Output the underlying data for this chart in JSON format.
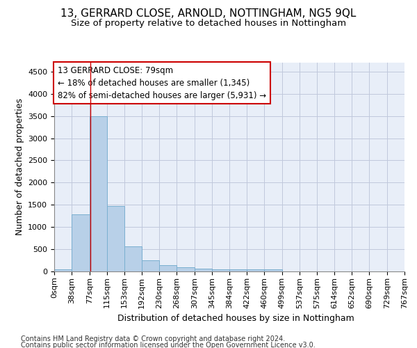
{
  "title": "13, GERRARD CLOSE, ARNOLD, NOTTINGHAM, NG5 9QL",
  "subtitle": "Size of property relative to detached houses in Nottingham",
  "xlabel": "Distribution of detached houses by size in Nottingham",
  "ylabel": "Number of detached properties",
  "bar_color": "#b8d0e8",
  "bar_edge_color": "#7aafd0",
  "background_color": "#e8eef8",
  "grid_color": "#c0c8dc",
  "annotation_line1": "13 GERRARD CLOSE: 79sqm",
  "annotation_line2": "← 18% of detached houses are smaller (1,345)",
  "annotation_line3": "82% of semi-detached houses are larger (5,931) →",
  "annotation_box_color": "#ffffff",
  "annotation_border_color": "#cc0000",
  "property_line_x": 79,
  "bin_edges": [
    0,
    38,
    77,
    115,
    153,
    192,
    230,
    268,
    307,
    345,
    384,
    422,
    460,
    499,
    537,
    575,
    614,
    652,
    690,
    729,
    767
  ],
  "bar_heights": [
    50,
    1290,
    3490,
    1470,
    570,
    250,
    140,
    100,
    65,
    40,
    45,
    45,
    40,
    5,
    5,
    5,
    5,
    5,
    5,
    5
  ],
  "ylim": [
    0,
    4700
  ],
  "yticks": [
    0,
    500,
    1000,
    1500,
    2000,
    2500,
    3000,
    3500,
    4000,
    4500
  ],
  "footer": "Contains HM Land Registry data © Crown copyright and database right 2024.\nContains public sector information licensed under the Open Government Licence v3.0.",
  "title_fontsize": 11,
  "subtitle_fontsize": 9.5,
  "axis_label_fontsize": 9,
  "tick_fontsize": 8,
  "annotation_fontsize": 8.5,
  "footer_fontsize": 7
}
